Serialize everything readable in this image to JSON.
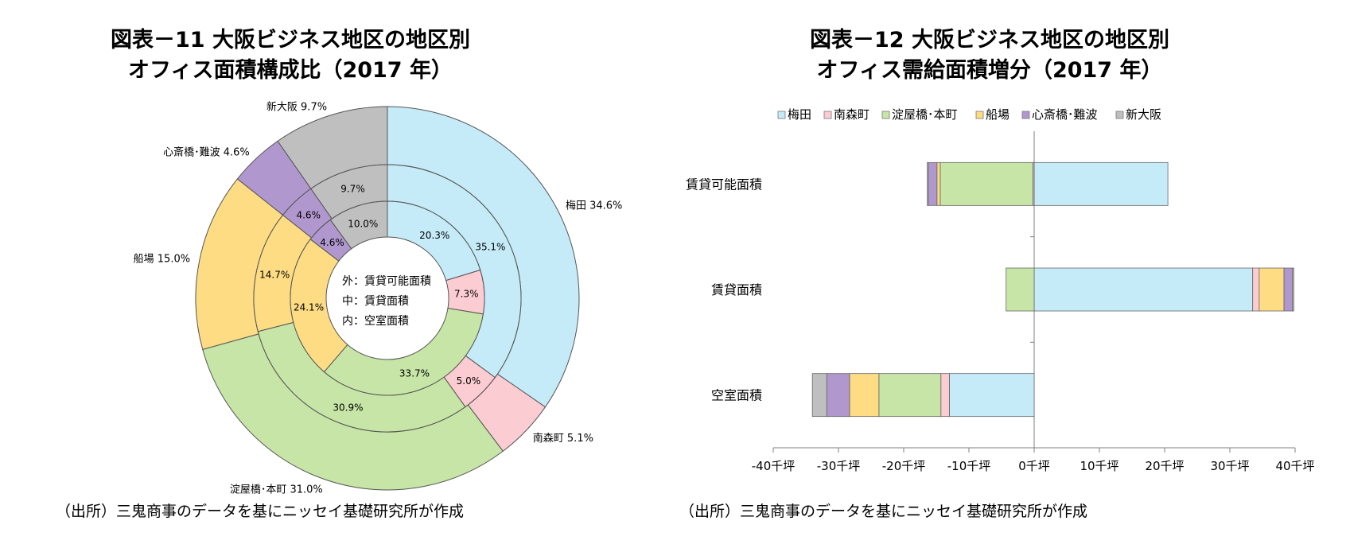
{
  "left": {
    "title_line1": "図表－11  大阪ビジネス地区の地区別",
    "title_line2": "オフィス面積構成比（2017 年）",
    "source": "（出所）三鬼商事のデータを基にニッセイ基礎研究所が作成",
    "center_lines": [
      "外：賃貸可能面積",
      "中：賃貸面積",
      "内：空室面積"
    ]
  },
  "right": {
    "title_line1": "図表－12  大阪ビジネス地区の地区別",
    "title_line2": "オフィス需給面積増分（2017 年）",
    "source": "（出所）三鬼商事のデータを基にニッセイ基礎研究所が作成"
  },
  "chart_data": [
    {
      "type": "pie",
      "subtype": "donut-nested",
      "title": "図表－11  大阪ビジネス地区の地区別 オフィス面積構成比（2017 年）",
      "categories": [
        "梅田",
        "南森町",
        "淀屋橋･本町",
        "船場",
        "心斎橋･難波",
        "新大阪"
      ],
      "colors": [
        "#c5ebf8",
        "#fbccd2",
        "#c7e5a6",
        "#fddc84",
        "#b097ce",
        "#bfbfbf"
      ],
      "series": [
        {
          "name": "外：賃貸可能面積",
          "values": [
            34.6,
            5.1,
            31.0,
            15.0,
            4.6,
            9.7
          ]
        },
        {
          "name": "中：賃貸面積",
          "values": [
            35.1,
            5.0,
            30.9,
            14.7,
            4.6,
            9.7
          ]
        },
        {
          "name": "内：空室面積",
          "values": [
            20.3,
            7.3,
            33.7,
            24.1,
            4.6,
            10.0
          ]
        }
      ],
      "outer_labels": [
        "梅田 34.6%",
        "南森町 5.1%",
        "淀屋橋･本町 31.0%",
        "船場 15.0%",
        "心斎橋･難波 4.6%",
        "新大阪 9.7%"
      ],
      "middle_labels": [
        "35.1%",
        "5.0%",
        "30.9%",
        "14.7%",
        "4.6%",
        "9.7%"
      ],
      "inner_labels": [
        "20.3%",
        "7.3%",
        "33.7%",
        "24.1%",
        "4.6%",
        "10.0%"
      ]
    },
    {
      "type": "bar",
      "orientation": "horizontal",
      "stacked": true,
      "title": "図表－12  大阪ビジネス地区の地区別 オフィス需給面積増分（2017 年）",
      "categories": [
        "賃貸可能面積",
        "賃貸面積",
        "空室面積"
      ],
      "series": [
        {
          "name": "梅田",
          "color": "#c5ebf8",
          "values": [
            20.5,
            33.5,
            -13
          ]
        },
        {
          "name": "南森町",
          "color": "#fbccd2",
          "values": [
            -0.2,
            1.0,
            -1.3
          ]
        },
        {
          "name": "淀屋橋･本町",
          "color": "#c7e5a6",
          "values": [
            -14.2,
            -4.3,
            -9.5
          ]
        },
        {
          "name": "船場",
          "color": "#fddc84",
          "values": [
            -0.5,
            3.8,
            -4.5
          ]
        },
        {
          "name": "心斎橋･難波",
          "color": "#b097ce",
          "values": [
            -1.3,
            1.3,
            -3.5
          ]
        },
        {
          "name": "新大阪",
          "color": "#bfbfbf",
          "values": [
            -0.2,
            0.2,
            -2.2
          ]
        }
      ],
      "xlim": [
        -40,
        40
      ],
      "xticks": [
        -40,
        -30,
        -20,
        -10,
        0,
        10,
        20,
        30,
        40
      ],
      "xtick_labels": [
        "-40千坪",
        "-30千坪",
        "-20千坪",
        "-10千坪",
        "0千坪",
        "10千坪",
        "20千坪",
        "30千坪",
        "40千坪"
      ],
      "legend_position": "top"
    }
  ]
}
